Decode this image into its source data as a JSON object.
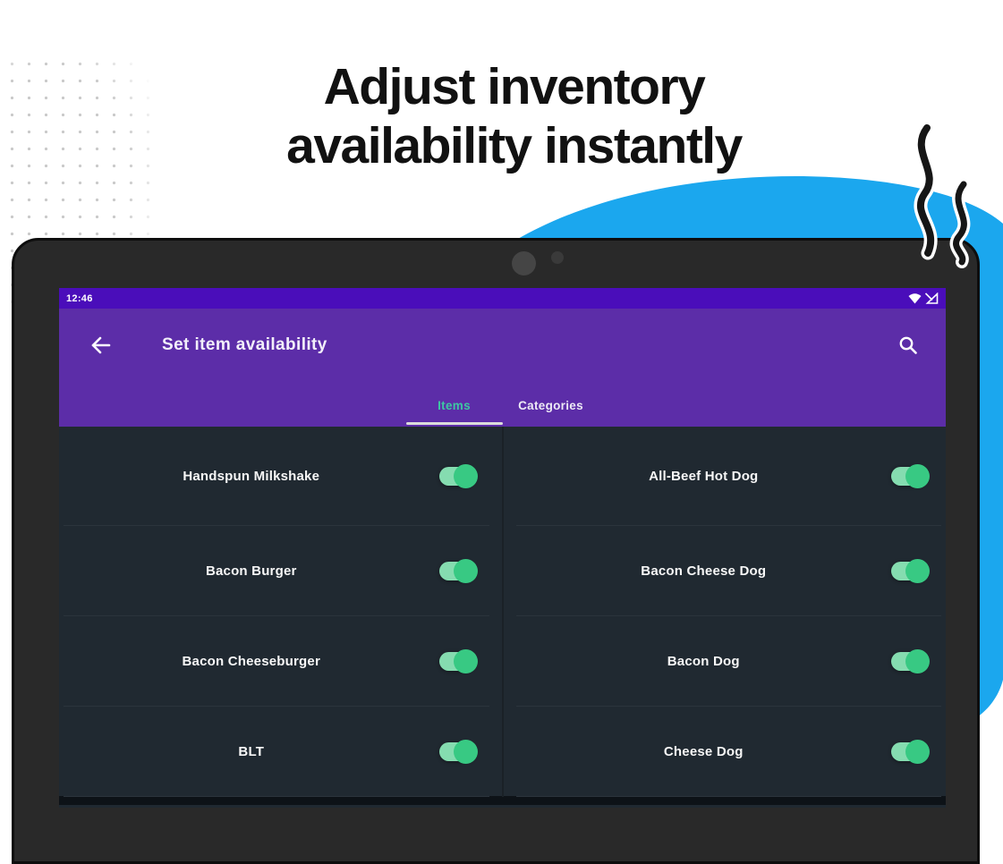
{
  "hero": {
    "title_line1": "Adjust inventory",
    "title_line2": "availability instantly"
  },
  "tablet": {
    "status_bar": {
      "time": "12:46",
      "icons": [
        "wifi-icon",
        "cell-signal-icon"
      ]
    },
    "app_bar": {
      "title": "Set item availability",
      "back_icon": "arrow-left",
      "search_icon": "magnifier"
    },
    "tabs": [
      {
        "label": "Items",
        "selected": true
      },
      {
        "label": "Categories",
        "selected": false
      }
    ],
    "items": {
      "left": [
        {
          "name": "Handspun Milkshake",
          "enabled": true
        },
        {
          "name": "Bacon Burger",
          "enabled": true
        },
        {
          "name": "Bacon Cheeseburger",
          "enabled": true
        },
        {
          "name": "BLT",
          "enabled": true
        }
      ],
      "right": [
        {
          "name": "All-Beef Hot Dog",
          "enabled": true
        },
        {
          "name": "Bacon Cheese Dog",
          "enabled": true
        },
        {
          "name": "Bacon Dog",
          "enabled": true
        },
        {
          "name": "Cheese Dog",
          "enabled": true
        }
      ]
    }
  },
  "colors": {
    "blob_blue": "#1ba7ee",
    "status_bar_purple": "#4a0dba",
    "app_bar_purple": "#5c2da8",
    "screen_bg": "#202931",
    "divider": "#2b343c",
    "tab_selected_teal": "#3ec7a2",
    "toggle_track": "#85dcb0",
    "toggle_thumb": "#38c983",
    "bezel": "#292929"
  }
}
